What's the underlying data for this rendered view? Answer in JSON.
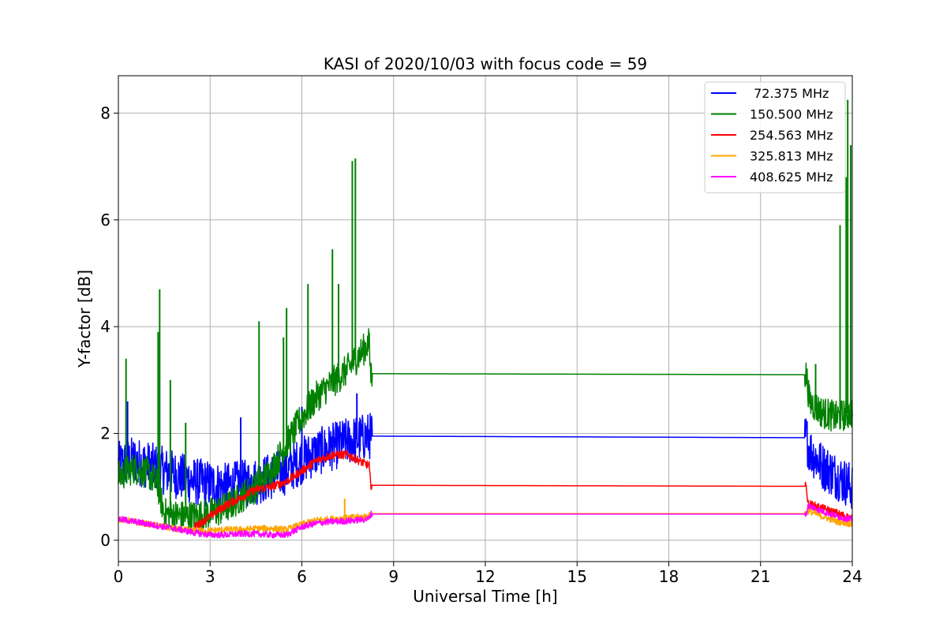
{
  "chart_data": {
    "type": "line",
    "title": "KASI of 2020/10/03 with focus code = 59",
    "xlabel": "Universal Time [h]",
    "ylabel": "Y-factor [dB]",
    "xlim": [
      0,
      24
    ],
    "ylim": [
      -0.4,
      8.7
    ],
    "xticks": [
      0,
      3,
      6,
      9,
      12,
      15,
      18,
      21,
      24
    ],
    "yticks": [
      0,
      2,
      4,
      6,
      8
    ],
    "grid": true,
    "legend_position": "top-right",
    "series": [
      {
        "name": " 72.375 MHz",
        "color": "#0000ff",
        "noise": 0.45,
        "points": [
          [
            0,
            1.4
          ],
          [
            0.5,
            1.5
          ],
          [
            1,
            1.4
          ],
          [
            1.5,
            1.3
          ],
          [
            2,
            1.2
          ],
          [
            2.5,
            1.1
          ],
          [
            3,
            1.05
          ],
          [
            3.5,
            1.0
          ],
          [
            4,
            1.05
          ],
          [
            4.5,
            1.1
          ],
          [
            5,
            1.2
          ],
          [
            5.5,
            1.3
          ],
          [
            6,
            1.5
          ],
          [
            6.5,
            1.65
          ],
          [
            7,
            1.75
          ],
          [
            7.5,
            1.85
          ],
          [
            8.2,
            1.95
          ],
          [
            8.25,
            1.95
          ],
          [
            22.5,
            1.92
          ],
          [
            22.6,
            1.7
          ],
          [
            23,
            1.4
          ],
          [
            23.5,
            1.2
          ],
          [
            24,
            1.0
          ]
        ],
        "spikes": [
          [
            0.3,
            2.6
          ],
          [
            4.0,
            2.3
          ],
          [
            6.0,
            2.5
          ],
          [
            7.8,
            2.75
          ]
        ]
      },
      {
        "name": "150.500 MHz",
        "color": "#008000",
        "noise": 0.3,
        "points": [
          [
            0,
            1.2
          ],
          [
            0.5,
            1.35
          ],
          [
            1,
            1.25
          ],
          [
            1.3,
            1.0
          ],
          [
            1.5,
            0.5
          ],
          [
            2,
            0.45
          ],
          [
            2.5,
            0.45
          ],
          [
            3,
            0.5
          ],
          [
            3.5,
            0.6
          ],
          [
            4,
            0.8
          ],
          [
            4.5,
            1.0
          ],
          [
            5,
            1.3
          ],
          [
            5.5,
            1.8
          ],
          [
            6,
            2.3
          ],
          [
            6.5,
            2.7
          ],
          [
            7,
            2.95
          ],
          [
            7.5,
            3.2
          ],
          [
            8.2,
            3.7
          ],
          [
            8.25,
            3.12
          ],
          [
            22.5,
            3.1
          ],
          [
            22.6,
            2.6
          ],
          [
            23,
            2.4
          ],
          [
            23.5,
            2.3
          ],
          [
            24,
            2.4
          ]
        ],
        "spikes": [
          [
            0.25,
            3.4
          ],
          [
            1.3,
            3.9
          ],
          [
            1.35,
            4.7
          ],
          [
            1.7,
            3.0
          ],
          [
            2.2,
            2.2
          ],
          [
            4.6,
            4.1
          ],
          [
            5.5,
            4.35
          ],
          [
            5.4,
            3.8
          ],
          [
            6.2,
            4.8
          ],
          [
            7.0,
            5.45
          ],
          [
            7.2,
            4.8
          ],
          [
            7.65,
            7.1
          ],
          [
            7.75,
            7.15
          ],
          [
            22.8,
            3.3
          ],
          [
            23.6,
            5.9
          ],
          [
            23.8,
            6.8
          ],
          [
            23.85,
            8.25
          ],
          [
            23.95,
            7.4
          ]
        ]
      },
      {
        "name": "254.563 MHz",
        "color": "#ff0000",
        "noise": 0.08,
        "points": [
          [
            2.5,
            0.25
          ],
          [
            3,
            0.45
          ],
          [
            3.5,
            0.65
          ],
          [
            4,
            0.8
          ],
          [
            4.5,
            0.95
          ],
          [
            5,
            1.0
          ],
          [
            5.5,
            1.1
          ],
          [
            6,
            1.3
          ],
          [
            6.5,
            1.5
          ],
          [
            7,
            1.6
          ],
          [
            7.5,
            1.6
          ],
          [
            8,
            1.45
          ],
          [
            8.2,
            1.4
          ],
          [
            8.25,
            1.03
          ],
          [
            22.5,
            1.01
          ],
          [
            22.55,
            0.68
          ],
          [
            23,
            0.6
          ],
          [
            23.5,
            0.5
          ],
          [
            24,
            0.4
          ]
        ],
        "spikes": []
      },
      {
        "name": "325.813 MHz",
        "color": "#ffa500",
        "noise": 0.06,
        "points": [
          [
            0,
            0.4
          ],
          [
            0.5,
            0.35
          ],
          [
            1,
            0.3
          ],
          [
            1.5,
            0.25
          ],
          [
            2,
            0.2
          ],
          [
            2.5,
            0.18
          ],
          [
            3,
            0.18
          ],
          [
            3.5,
            0.2
          ],
          [
            4,
            0.2
          ],
          [
            4.5,
            0.22
          ],
          [
            5,
            0.22
          ],
          [
            5.5,
            0.2
          ],
          [
            6,
            0.3
          ],
          [
            6.5,
            0.38
          ],
          [
            7,
            0.4
          ],
          [
            7.5,
            0.42
          ],
          [
            8.2,
            0.45
          ],
          [
            8.25,
            0.5
          ],
          [
            22.5,
            0.5
          ],
          [
            22.55,
            0.55
          ],
          [
            23,
            0.45
          ],
          [
            23.5,
            0.35
          ],
          [
            24,
            0.3
          ]
        ],
        "spikes": [
          [
            7.4,
            0.78
          ]
        ]
      },
      {
        "name": "408.625 MHz",
        "color": "#ff00ff",
        "noise": 0.06,
        "points": [
          [
            0,
            0.4
          ],
          [
            0.5,
            0.35
          ],
          [
            1,
            0.3
          ],
          [
            1.5,
            0.25
          ],
          [
            2,
            0.2
          ],
          [
            2.5,
            0.14
          ],
          [
            3,
            0.1
          ],
          [
            3.5,
            0.1
          ],
          [
            4,
            0.12
          ],
          [
            4.5,
            0.12
          ],
          [
            5,
            0.1
          ],
          [
            5.5,
            0.1
          ],
          [
            6,
            0.25
          ],
          [
            6.5,
            0.32
          ],
          [
            7,
            0.35
          ],
          [
            7.5,
            0.36
          ],
          [
            8.2,
            0.4
          ],
          [
            8.25,
            0.49
          ],
          [
            22.5,
            0.49
          ],
          [
            22.55,
            0.65
          ],
          [
            23,
            0.55
          ],
          [
            23.5,
            0.45
          ],
          [
            24,
            0.38
          ]
        ],
        "spikes": []
      }
    ]
  }
}
